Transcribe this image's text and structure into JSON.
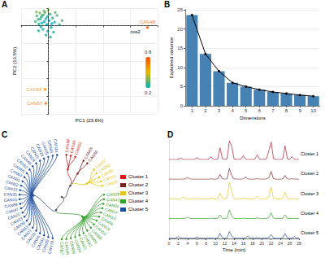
{
  "chart_data": [
    {
      "type": "scatter",
      "title": "A",
      "xlabel": "PC1 (23.6%)",
      "ylabel": "PC2 (13.5%)",
      "x": [
        -2.1,
        -1.5,
        -3.0,
        -0.8,
        -2.5,
        -1.2,
        -3.4,
        0.5,
        -0.3,
        -1.9,
        1.2,
        -2.8,
        0.2,
        -1.0,
        -3.8,
        1.8,
        -0.5,
        -2.2,
        0.8,
        -1.6,
        2.5,
        -0.2,
        1.5,
        -2.9,
        3.2,
        -1.3,
        0.0,
        -3.5,
        2.0,
        -0.7,
        1.0,
        -2.4,
        4.0,
        0.6,
        -1.8,
        29,
        -1,
        -0.8
      ],
      "y": [
        2.5,
        3.1,
        1.8,
        2.0,
        3.6,
        1.2,
        2.8,
        3.3,
        2.6,
        0.8,
        2.2,
        0.5,
        1.5,
        3.8,
        1.2,
        1.0,
        0.4,
        -0.3,
        -0.5,
        -1.0,
        2.9,
        -1.5,
        -1.8,
        -1.4,
        0.3,
        4.2,
        4.5,
        3.9,
        3.8,
        -2.6,
        0.6,
        1.9,
        1.5,
        -3.2,
        2.9,
        -0.5,
        -18,
        -22
      ],
      "cos2": [
        0.25,
        0.31,
        0.28,
        0.22,
        0.35,
        0.2,
        0.3,
        0.27,
        0.24,
        0.21,
        0.26,
        0.23,
        0.2,
        0.33,
        0.29,
        0.22,
        0.2,
        0.21,
        0.2,
        0.22,
        0.3,
        0.21,
        0.24,
        0.25,
        0.27,
        0.34,
        0.36,
        0.38,
        0.32,
        0.23,
        0.2,
        0.26,
        0.31,
        0.25,
        0.28,
        0.78,
        0.62,
        0.7
      ],
      "labels": [
        null,
        null,
        null,
        null,
        null,
        null,
        null,
        null,
        null,
        null,
        null,
        null,
        null,
        null,
        null,
        null,
        null,
        null,
        null,
        null,
        null,
        null,
        null,
        null,
        null,
        null,
        null,
        null,
        null,
        null,
        null,
        null,
        null,
        null,
        null,
        "CAN48",
        "CAN58",
        "CAN57"
      ],
      "xlim": [
        -8,
        32
      ],
      "xticks": [
        -8,
        0,
        8,
        16,
        24,
        32
      ],
      "ylim": [
        -25,
        5
      ],
      "yticks": [
        -25,
        -20,
        -15,
        -10,
        -5,
        0,
        5
      ],
      "vlines": [
        0
      ],
      "hlines": [
        0
      ],
      "line_style": "dashed",
      "grid": true,
      "tick_labels": false,
      "colorbar": {
        "title": "cos2",
        "range": [
          0.2,
          0.8
        ],
        "colors": [
          "#00AFBB",
          "#E7B800",
          "#FC4E07"
        ]
      }
    },
    {
      "type": "bar",
      "title": "B",
      "xlabel": "Dimensions",
      "ylabel": "Explained variance",
      "categories": [
        "1",
        "2",
        "3",
        "4",
        "5",
        "6",
        "7",
        "8",
        "9",
        "10"
      ],
      "series": [
        {
          "type": "bar",
          "color": "#4682B4",
          "values": [
            23.6,
            13.5,
            9.0,
            6.0,
            5.0,
            4.2,
            3.6,
            3.2,
            2.8,
            2.5
          ]
        },
        {
          "type": "line",
          "color": "#000000",
          "marker": "circle",
          "values": [
            23.6,
            13.5,
            9.0,
            6.0,
            5.0,
            4.2,
            3.6,
            3.2,
            2.8,
            2.5
          ]
        }
      ],
      "ylim": [
        0,
        25
      ],
      "yticks": [
        0,
        5,
        10,
        15,
        20,
        25
      ],
      "grid": true
    },
    {
      "type": "dendrogram",
      "title": "C",
      "legend": "right",
      "children": [
        {
          "children": [
            {
              "name": "Cluster 1",
              "color": "#D7191C",
              "leaves": [
                "CAN48",
                "CAN49",
                "CAN52"
              ]
            },
            {
              "name": "Cluster 2",
              "color": "#7B1F1F",
              "leaves": [
                "CAN55",
                "CAN60"
              ]
            },
            {
              "name": "Cluster 3",
              "color": "#E6C619",
              "leaves": [
                "CAN57",
                "CAN58",
                "CAN50",
                "CAN54",
                "CAN25"
              ]
            }
          ]
        },
        {
          "children": [
            {
              "name": "Cluster 4",
              "color": "#33A02C",
              "leaves": [
                "CAN28",
                "CAN43",
                "CAN05",
                "CAN14",
                "CAN13",
                "CAN08",
                "CAN19",
                "CAN10",
                "CAN66",
                "CAN06",
                "CAN41",
                "CAN01",
                "CAN04",
                "CAN09",
                "CAN26",
                "CAN07"
              ]
            },
            {
              "name": "Cluster 5",
              "color": "#1F4E9C",
              "leaves": [
                "CAN70",
                "CAN20",
                "CAN31",
                "CAN16",
                "CAN18",
                "CAN27",
                "CAN53",
                "CAN39",
                "CAN33",
                "CAN22",
                "CAN47",
                "CAN68",
                "CAN03",
                "CAN35",
                "CAN15",
                "CAN02",
                "CAN61",
                "CAN63",
                "CAN65",
                "CAN62",
                "CAN46",
                "CAN29",
                "CAN21",
                "CAN24",
                "CAN36",
                "CAN45",
                "CAN34"
              ]
            }
          ]
        }
      ]
    },
    {
      "type": "line",
      "title": "D",
      "xlabel": "Time (min)",
      "x": [
        0,
        0.5,
        1,
        1.5,
        2,
        2.5,
        3,
        3.5,
        4,
        4.5,
        5,
        5.5,
        6,
        6.5,
        7,
        7.5,
        8,
        8.5,
        9,
        9.5,
        10,
        10.5,
        11,
        11.5,
        12,
        12.5,
        13,
        13.5,
        14,
        14.5,
        15,
        15.5,
        16,
        16.5,
        17,
        17.5,
        18,
        18.5,
        19,
        19.5,
        20,
        20.5,
        21,
        21.5,
        22,
        22.5,
        23,
        23.5,
        24,
        24.5,
        25,
        25.5,
        26,
        26.5,
        27,
        27.5,
        28
      ],
      "series": [
        {
          "name": "Cluster 1",
          "color": "#B2182B",
          "values": [
            1,
            1,
            1,
            1,
            2,
            8,
            2,
            1,
            1,
            1,
            1,
            2,
            10,
            2,
            1,
            1,
            1,
            2,
            15,
            2,
            1,
            3,
            60,
            5,
            2,
            4,
            95,
            70,
            4,
            2,
            1,
            3,
            20,
            3,
            1,
            1,
            1,
            3,
            25,
            3,
            1,
            2,
            5,
            45,
            90,
            6,
            2,
            1,
            1,
            4,
            70,
            5,
            2,
            15,
            2,
            1,
            1
          ]
        },
        {
          "name": "Cluster 2",
          "color": "#7B1F1F",
          "values": [
            1,
            1,
            1,
            1,
            1,
            1,
            1,
            2,
            10,
            2,
            1,
            1,
            1,
            1,
            1,
            1,
            1,
            1,
            2,
            1,
            1,
            2,
            25,
            3,
            1,
            3,
            55,
            20,
            2,
            1,
            1,
            1,
            2,
            12,
            2,
            1,
            1,
            1,
            4,
            1,
            1,
            1,
            2,
            8,
            40,
            3,
            1,
            1,
            1,
            2,
            20,
            2,
            1,
            3,
            1,
            1,
            1
          ]
        },
        {
          "name": "Cluster 3",
          "color": "#E6C619",
          "values": [
            1,
            1,
            1,
            1,
            1,
            2,
            12,
            2,
            1,
            1,
            1,
            1,
            3,
            1,
            1,
            1,
            1,
            1,
            4,
            1,
            1,
            2,
            30,
            3,
            1,
            4,
            85,
            40,
            3,
            1,
            1,
            1,
            5,
            2,
            1,
            1,
            1,
            2,
            15,
            2,
            1,
            1,
            3,
            10,
            60,
            4,
            1,
            1,
            1,
            3,
            35,
            3,
            1,
            4,
            1,
            1,
            1
          ]
        },
        {
          "name": "Cluster 4",
          "color": "#33A02C",
          "values": [
            1,
            1,
            1,
            1,
            1,
            1,
            1,
            2,
            8,
            2,
            1,
            1,
            2,
            1,
            1,
            1,
            1,
            1,
            3,
            1,
            1,
            2,
            20,
            2,
            1,
            3,
            45,
            15,
            2,
            1,
            1,
            1,
            3,
            1,
            1,
            1,
            1,
            1,
            5,
            1,
            1,
            1,
            2,
            6,
            30,
            3,
            1,
            1,
            1,
            2,
            20,
            2,
            1,
            2,
            1,
            1,
            1
          ]
        },
        {
          "name": "Cluster 5",
          "color": "#1F4E9C",
          "values": [
            1,
            1,
            1,
            2,
            10,
            2,
            1,
            1,
            1,
            1,
            1,
            2,
            8,
            2,
            1,
            1,
            1,
            1,
            3,
            1,
            1,
            2,
            25,
            3,
            1,
            3,
            35,
            12,
            2,
            1,
            1,
            1,
            2,
            3,
            12,
            2,
            1,
            1,
            4,
            1,
            1,
            1,
            2,
            5,
            20,
            2,
            1,
            1,
            1,
            3,
            25,
            3,
            1,
            2,
            10,
            2,
            1
          ]
        }
      ],
      "xlim": [
        0,
        28
      ],
      "xticks": [
        0,
        2,
        4,
        6,
        8,
        10,
        12,
        14,
        16,
        18,
        20,
        22,
        24,
        26,
        28
      ],
      "ylim": [
        0,
        100
      ],
      "tick_labels": "x"
    }
  ]
}
